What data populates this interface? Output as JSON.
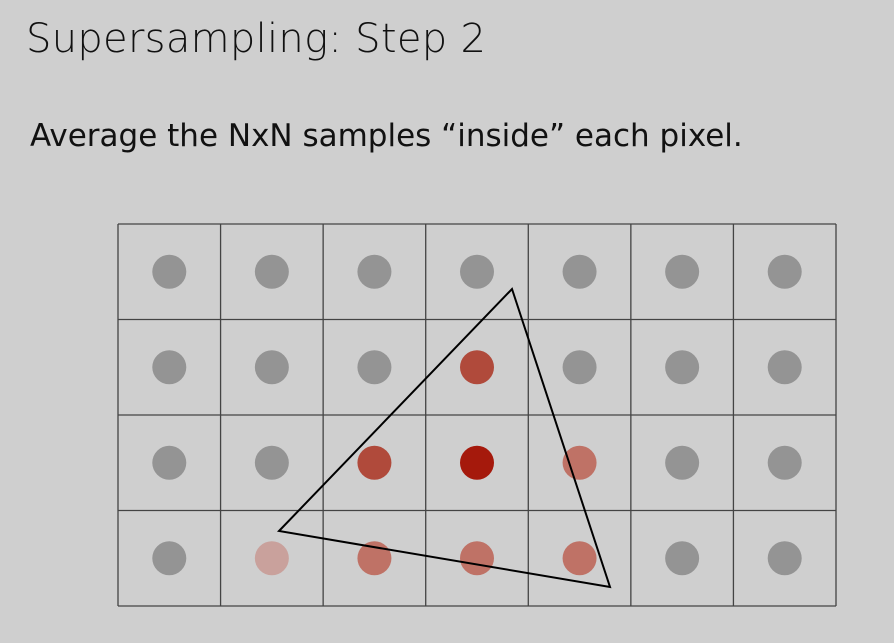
{
  "slide": {
    "title": "Supersampling: Step 2",
    "subtitle": "Average the NxN samples “inside” each pixel."
  },
  "grid": {
    "cols": 7,
    "rows": 4,
    "line_color": "#444444",
    "sample_default_color": "#949494",
    "samples": [
      [
        "#949494",
        "#949494",
        "#949494",
        "#949494",
        "#949494",
        "#949494",
        "#949494"
      ],
      [
        "#949494",
        "#949494",
        "#949494",
        "#b04a3b",
        "#949494",
        "#949494",
        "#949494"
      ],
      [
        "#949494",
        "#949494",
        "#b04a3b",
        "#a5190c",
        "#bf7266",
        "#949494",
        "#949494"
      ],
      [
        "#949494",
        "#c9a19c",
        "#bf7266",
        "#bf7266",
        "#bf7266",
        "#949494",
        "#949494"
      ]
    ]
  },
  "triangle": {
    "stroke": "#000000"
  }
}
